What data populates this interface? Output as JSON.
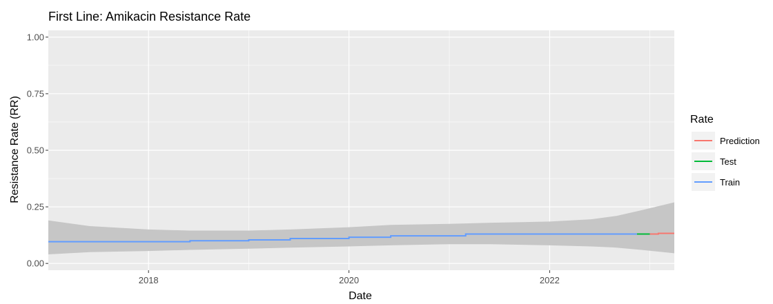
{
  "chart_data": {
    "type": "line",
    "title": "First Line: Amikacin Resistance Rate",
    "xlabel": "Date",
    "ylabel": "Resistance Rate (RR)",
    "xlim": [
      "2017-01-01",
      "2023-03-31"
    ],
    "ylim": [
      -0.03,
      1.03
    ],
    "x_ticks": [
      {
        "date": "2018-01-01",
        "label": "2018"
      },
      {
        "date": "2020-01-01",
        "label": "2020"
      },
      {
        "date": "2022-01-01",
        "label": "2022"
      }
    ],
    "y_ticks": [
      {
        "value": 0.0,
        "label": "0.00"
      },
      {
        "value": 0.25,
        "label": "0.25"
      },
      {
        "value": 0.5,
        "label": "0.50"
      },
      {
        "value": 0.75,
        "label": "0.75"
      },
      {
        "value": 1.0,
        "label": "1.00"
      }
    ],
    "grid": true,
    "legend": {
      "title": "Rate",
      "position": "right"
    },
    "band": {
      "x": [
        "2017-01-01",
        "2017-06-01",
        "2018-01-01",
        "2018-06-01",
        "2019-01-01",
        "2019-06-01",
        "2020-01-01",
        "2020-06-01",
        "2021-01-01",
        "2021-06-01",
        "2022-01-01",
        "2022-06-01",
        "2022-09-01",
        "2022-12-01",
        "2023-03-31"
      ],
      "lower": [
        0.04,
        0.05,
        0.055,
        0.06,
        0.065,
        0.07,
        0.075,
        0.08,
        0.085,
        0.085,
        0.08,
        0.075,
        0.07,
        0.06,
        0.045
      ],
      "upper": [
        0.19,
        0.165,
        0.15,
        0.145,
        0.145,
        0.15,
        0.16,
        0.17,
        0.175,
        0.18,
        0.185,
        0.195,
        0.21,
        0.235,
        0.27
      ]
    },
    "series": [
      {
        "name": "Prediction",
        "color": "#f8766d",
        "points": [
          [
            "2023-01-01",
            0.13
          ],
          [
            "2023-02-01",
            0.13
          ],
          [
            "2023-02-01",
            0.133
          ],
          [
            "2023-03-31",
            0.133
          ]
        ]
      },
      {
        "name": "Test",
        "color": "#00ba38",
        "points": [
          [
            "2022-11-15",
            0.13
          ],
          [
            "2023-01-01",
            0.13
          ]
        ]
      },
      {
        "name": "Train",
        "color": "#619cff",
        "points": [
          [
            "2017-01-01",
            0.096
          ],
          [
            "2018-06-01",
            0.096
          ],
          [
            "2018-06-01",
            0.1
          ],
          [
            "2019-01-01",
            0.1
          ],
          [
            "2019-01-01",
            0.104
          ],
          [
            "2019-06-01",
            0.104
          ],
          [
            "2019-06-01",
            0.11
          ],
          [
            "2020-01-01",
            0.11
          ],
          [
            "2020-01-01",
            0.116
          ],
          [
            "2020-06-01",
            0.116
          ],
          [
            "2020-06-01",
            0.122
          ],
          [
            "2021-03-01",
            0.122
          ],
          [
            "2021-03-01",
            0.13
          ],
          [
            "2022-11-15",
            0.13
          ]
        ]
      }
    ]
  }
}
